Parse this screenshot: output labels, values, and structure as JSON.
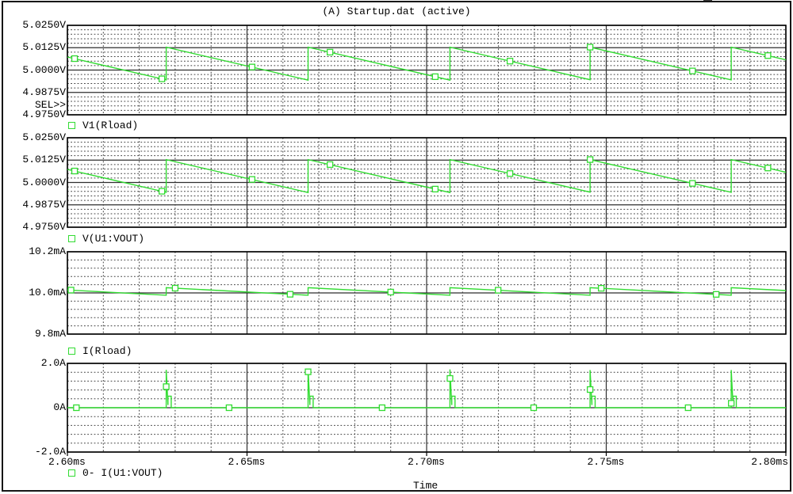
{
  "window": {
    "title": "(A) Startup.dat (active)"
  },
  "sel_label": "SEL>>",
  "x_axis": {
    "label": "Time",
    "xlim": [
      2.6,
      2.8
    ],
    "unit": "ms",
    "ticks": [
      {
        "t": 2.6,
        "label": "2.60ms"
      },
      {
        "t": 2.65,
        "label": "2.65ms"
      },
      {
        "t": 2.7,
        "label": "2.70ms"
      },
      {
        "t": 2.75,
        "label": "2.75ms"
      },
      {
        "t": 2.8,
        "label": "2.80ms"
      }
    ]
  },
  "colors": {
    "trace": "#32dc32",
    "grid_minor": "#404040",
    "grid_major": "#2e2e2e",
    "frame": "#000000",
    "text": "#000000",
    "background": "#ffffff"
  },
  "chart_data": [
    {
      "type": "line",
      "legend": "V1(Rload)",
      "unit": "V",
      "ylim": [
        4.975,
        5.025
      ],
      "y_ticks": [
        {
          "v": 5.025,
          "label": "5.0250V"
        },
        {
          "v": 5.0125,
          "label": "5.0125V"
        },
        {
          "v": 5.0,
          "label": "5.0000V"
        },
        {
          "v": 4.9875,
          "label": "4.9875V"
        },
        {
          "v": 4.975,
          "label": "4.9750V"
        }
      ],
      "points": [
        [
          2.6,
          5.0073
        ],
        [
          2.6275,
          4.9945
        ],
        [
          2.6275,
          5.0128
        ],
        [
          2.667,
          4.9944
        ],
        [
          2.667,
          5.0128
        ],
        [
          2.7065,
          4.9944
        ],
        [
          2.7065,
          5.0128
        ],
        [
          2.7455,
          4.9946
        ],
        [
          2.7455,
          5.0128
        ],
        [
          2.7848,
          4.9945
        ],
        [
          2.7848,
          5.0128
        ],
        [
          2.8,
          5.0057
        ]
      ],
      "markers": [
        [
          2.602,
          5.0064
        ],
        [
          2.6263,
          4.9951
        ],
        [
          2.6514,
          5.0017
        ],
        [
          2.6731,
          5.01
        ],
        [
          2.7024,
          4.9963
        ],
        [
          2.7232,
          5.005
        ],
        [
          2.7455,
          5.0128
        ],
        [
          2.774,
          4.9995
        ],
        [
          2.795,
          5.0081
        ]
      ]
    },
    {
      "type": "line",
      "legend": "V(U1:VOUT)",
      "unit": "V",
      "ylim": [
        4.975,
        5.025
      ],
      "y_ticks": [
        {
          "v": 5.025,
          "label": "5.0250V"
        },
        {
          "v": 5.0125,
          "label": "5.0125V"
        },
        {
          "v": 5.0,
          "label": "5.0000V"
        },
        {
          "v": 4.9875,
          "label": "4.9875V"
        },
        {
          "v": 4.975,
          "label": "4.9750V"
        }
      ],
      "points": [
        [
          2.6,
          5.0073
        ],
        [
          2.6275,
          4.9945
        ],
        [
          2.6275,
          5.0128
        ],
        [
          2.667,
          4.9944
        ],
        [
          2.667,
          5.0128
        ],
        [
          2.7065,
          4.9944
        ],
        [
          2.7065,
          5.0128
        ],
        [
          2.7455,
          4.9946
        ],
        [
          2.7455,
          5.0128
        ],
        [
          2.7848,
          4.9945
        ],
        [
          2.7848,
          5.0128
        ],
        [
          2.8,
          5.0057
        ]
      ],
      "markers": [
        [
          2.602,
          5.0064
        ],
        [
          2.6263,
          4.9951
        ],
        [
          2.6514,
          5.0017
        ],
        [
          2.6731,
          5.01
        ],
        [
          2.7024,
          4.9963
        ],
        [
          2.7232,
          5.005
        ],
        [
          2.7455,
          5.0128
        ],
        [
          2.774,
          4.9995
        ],
        [
          2.795,
          5.0081
        ]
      ]
    },
    {
      "type": "line",
      "legend": "I(Rload)",
      "unit": "mA",
      "ylim": [
        9.8,
        10.2
      ],
      "y_ticks": [
        {
          "v": 10.2,
          "label": "10.2mA"
        },
        {
          "v": 10.0,
          "label": "10.0mA"
        },
        {
          "v": 9.8,
          "label": "9.8mA"
        }
      ],
      "points": [
        [
          2.6,
          10.0144
        ],
        [
          2.6275,
          9.989
        ],
        [
          2.6275,
          10.0255
        ],
        [
          2.667,
          9.989
        ],
        [
          2.667,
          10.0255
        ],
        [
          2.7065,
          9.989
        ],
        [
          2.7065,
          10.0255
        ],
        [
          2.7455,
          9.989
        ],
        [
          2.7455,
          10.0255
        ],
        [
          2.7848,
          9.989
        ],
        [
          2.7848,
          10.0255
        ],
        [
          2.8,
          10.0114
        ]
      ],
      "markers": [
        [
          2.601,
          10.0137
        ],
        [
          2.63,
          10.0232
        ],
        [
          2.662,
          9.9935
        ],
        [
          2.69,
          10.0041
        ],
        [
          2.7199,
          10.0131
        ],
        [
          2.7486,
          10.0226
        ],
        [
          2.7806,
          9.9929
        ]
      ]
    },
    {
      "type": "line",
      "legend": "0- I(U1:VOUT)",
      "unit": "A",
      "ylim": [
        -2.0,
        2.0
      ],
      "y_ticks": [
        {
          "v": 2.0,
          "label": "2.0A"
        },
        {
          "v": 0.0,
          "label": "0A"
        },
        {
          "v": -2.0,
          "label": "-2.0A"
        }
      ],
      "points": [
        [
          2.6,
          0
        ],
        [
          2.6275,
          0
        ],
        [
          2.6275,
          1.71
        ],
        [
          2.628,
          0.12
        ],
        [
          2.628,
          0.52
        ],
        [
          2.6289,
          0.52
        ],
        [
          2.6289,
          0
        ],
        [
          2.667,
          0
        ],
        [
          2.667,
          1.74
        ],
        [
          2.6675,
          0.12
        ],
        [
          2.6675,
          0.52
        ],
        [
          2.6684,
          0.52
        ],
        [
          2.6684,
          0
        ],
        [
          2.7065,
          0
        ],
        [
          2.7065,
          1.73
        ],
        [
          2.707,
          0.12
        ],
        [
          2.707,
          0.52
        ],
        [
          2.7079,
          0.52
        ],
        [
          2.7079,
          0
        ],
        [
          2.7455,
          0
        ],
        [
          2.7455,
          1.7
        ],
        [
          2.746,
          0.12
        ],
        [
          2.746,
          0.52
        ],
        [
          2.7469,
          0.52
        ],
        [
          2.7469,
          0
        ],
        [
          2.7848,
          0
        ],
        [
          2.7848,
          1.7
        ],
        [
          2.7853,
          0.12
        ],
        [
          2.7853,
          0.52
        ],
        [
          2.7862,
          0.52
        ],
        [
          2.7862,
          0
        ],
        [
          2.8,
          0
        ]
      ],
      "markers": [
        [
          2.6025,
          0
        ],
        [
          2.6275,
          0.95
        ],
        [
          2.645,
          0
        ],
        [
          2.667,
          1.62
        ],
        [
          2.6876,
          0
        ],
        [
          2.7065,
          1.32
        ],
        [
          2.7298,
          0
        ],
        [
          2.7455,
          0.82
        ],
        [
          2.7728,
          0
        ],
        [
          2.7848,
          0.2
        ]
      ]
    }
  ]
}
